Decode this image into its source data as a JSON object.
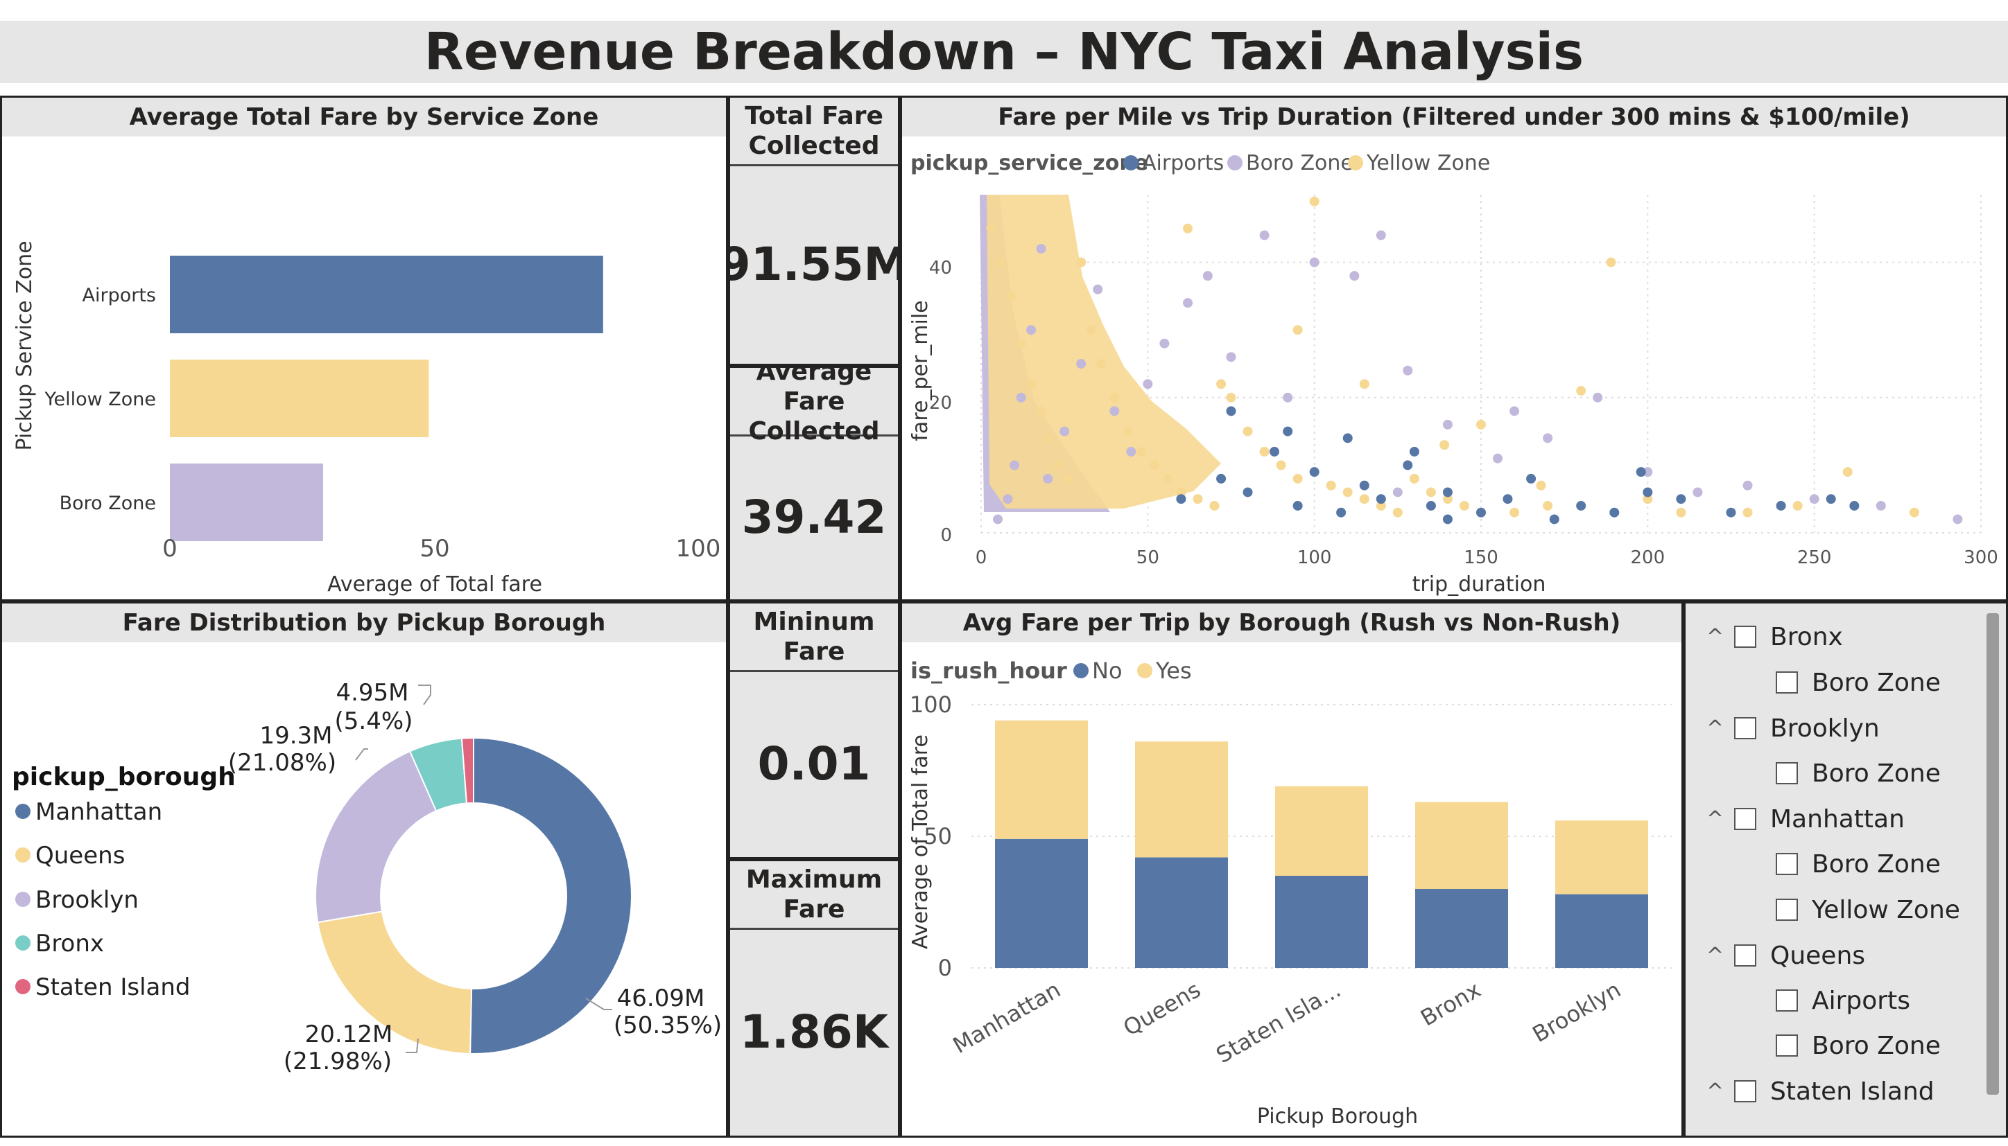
{
  "page": {
    "title": "Revenue Breakdown – NYC Taxi Analysis"
  },
  "colors": {
    "airports": "#5677a5",
    "yellow_zone": "#f6d892",
    "boro_zone": "#c2b8dc",
    "bronx": "#78cdc6",
    "staten_island": "#e0667f",
    "banner": "#e6e6e6"
  },
  "cards": [
    {
      "title": "Total Fare Collected",
      "value": "91.55M"
    },
    {
      "title": "Average Fare Collected",
      "value": "39.42"
    },
    {
      "title": "Mininum Fare",
      "value": "0.01"
    },
    {
      "title": "Maximum Fare",
      "value": "1.86K"
    }
  ],
  "bar_chart": {
    "title": "Average Total Fare by Service Zone",
    "xlabel": "Average of Total fare",
    "ylabel": "Pickup Service Zone",
    "ticks": [
      "0",
      "50",
      "100"
    ],
    "chart_data": {
      "type": "bar",
      "orientation": "horizontal",
      "categories": [
        "Airports",
        "Yellow Zone",
        "Boro Zone"
      ],
      "values": [
        82,
        49,
        29
      ],
      "xlim": [
        0,
        100
      ]
    }
  },
  "scatter_chart": {
    "title": "Fare per Mile vs Trip Duration (Filtered under 300 mins & $100/mile)",
    "legend_title": "pickup_service_zone",
    "legend": [
      "Airports",
      "Boro Zone",
      "Yellow Zone"
    ],
    "xlabel": "trip_duration",
    "ylabel": "fare_per_mile",
    "xticks": [
      "0",
      "50",
      "100",
      "150",
      "200",
      "250",
      "300"
    ],
    "yticks": [
      "0",
      "20",
      "40"
    ],
    "chart_data": {
      "type": "scatter",
      "xlim": [
        0,
        300
      ],
      "ylim": [
        0,
        50
      ],
      "series": [
        {
          "name": "Airports",
          "points": [
            [
              60,
              5
            ],
            [
              72,
              8
            ],
            [
              80,
              6
            ],
            [
              88,
              12
            ],
            [
              95,
              4
            ],
            [
              100,
              9
            ],
            [
              108,
              3
            ],
            [
              115,
              7
            ],
            [
              120,
              5
            ],
            [
              128,
              10
            ],
            [
              135,
              4
            ],
            [
              140,
              6
            ],
            [
              150,
              3
            ],
            [
              158,
              5
            ],
            [
              165,
              8
            ],
            [
              172,
              2
            ],
            [
              180,
              4
            ],
            [
              190,
              3
            ],
            [
              200,
              6
            ],
            [
              210,
              5
            ],
            [
              225,
              3
            ],
            [
              240,
              4
            ],
            [
              255,
              5
            ],
            [
              262,
              4
            ],
            [
              92,
              15
            ],
            [
              110,
              14
            ],
            [
              130,
              12
            ],
            [
              75,
              18
            ],
            [
              140,
              2
            ],
            [
              198,
              9
            ]
          ]
        },
        {
          "name": "Boro Zone",
          "points": [
            [
              5,
              2
            ],
            [
              8,
              5
            ],
            [
              10,
              10
            ],
            [
              12,
              20
            ],
            [
              15,
              30
            ],
            [
              18,
              42
            ],
            [
              20,
              8
            ],
            [
              25,
              15
            ],
            [
              30,
              25
            ],
            [
              35,
              36
            ],
            [
              40,
              18
            ],
            [
              45,
              12
            ],
            [
              50,
              22
            ],
            [
              55,
              28
            ],
            [
              62,
              34
            ],
            [
              68,
              38
            ],
            [
              75,
              26
            ],
            [
              85,
              44
            ],
            [
              92,
              20
            ],
            [
              100,
              40
            ],
            [
              112,
              38
            ],
            [
              120,
              44
            ],
            [
              128,
              24
            ],
            [
              140,
              16
            ],
            [
              160,
              18
            ],
            [
              170,
              14
            ],
            [
              185,
              20
            ],
            [
              200,
              9
            ],
            [
              215,
              6
            ],
            [
              230,
              7
            ],
            [
              250,
              5
            ],
            [
              270,
              4
            ],
            [
              293,
              2
            ],
            [
              125,
              6
            ],
            [
              155,
              11
            ]
          ]
        },
        {
          "name": "Yellow Zone",
          "points": [
            [
              3,
              45
            ],
            [
              6,
              40
            ],
            [
              9,
              35
            ],
            [
              12,
              28
            ],
            [
              15,
              22
            ],
            [
              18,
              18
            ],
            [
              20,
              14
            ],
            [
              23,
              10
            ],
            [
              26,
              8
            ],
            [
              30,
              40
            ],
            [
              33,
              30
            ],
            [
              36,
              25
            ],
            [
              40,
              20
            ],
            [
              44,
              15
            ],
            [
              48,
              12
            ],
            [
              52,
              10
            ],
            [
              56,
              8
            ],
            [
              60,
              6
            ],
            [
              65,
              5
            ],
            [
              70,
              4
            ],
            [
              75,
              20
            ],
            [
              80,
              15
            ],
            [
              85,
              12
            ],
            [
              90,
              10
            ],
            [
              95,
              8
            ],
            [
              100,
              49
            ],
            [
              105,
              7
            ],
            [
              110,
              6
            ],
            [
              115,
              5
            ],
            [
              120,
              4
            ],
            [
              125,
              3
            ],
            [
              130,
              8
            ],
            [
              135,
              6
            ],
            [
              140,
              5
            ],
            [
              145,
              4
            ],
            [
              150,
              3
            ],
            [
              160,
              3
            ],
            [
              170,
              4
            ],
            [
              180,
              21
            ],
            [
              189,
              40
            ],
            [
              200,
              5
            ],
            [
              210,
              3
            ],
            [
              230,
              3
            ],
            [
              245,
              4
            ],
            [
              260,
              9
            ],
            [
              280,
              3
            ],
            [
              62,
              45
            ],
            [
              72,
              22
            ],
            [
              95,
              30
            ],
            [
              115,
              22
            ],
            [
              139,
              13
            ],
            [
              150,
              16
            ],
            [
              168,
              7
            ]
          ]
        }
      ]
    }
  },
  "donut_chart": {
    "title": "Fare Distribution by Pickup Borough",
    "legend_title": "pickup_borough",
    "chart_data": {
      "type": "pie",
      "categories": [
        "Manhattan",
        "Queens",
        "Brooklyn",
        "Bronx",
        "Staten Island"
      ],
      "values": [
        46.09,
        20.12,
        19.3,
        4.95,
        1.09
      ],
      "labels": [
        {
          "value": "46.09M",
          "pct": "(50.35%)"
        },
        {
          "value": "20.12M",
          "pct": "(21.98%)"
        },
        {
          "value": "19.3M",
          "pct": "(21.08%)"
        },
        {
          "value": "4.95M",
          "pct": "(5.4%)"
        }
      ]
    }
  },
  "stacked_chart": {
    "title": "Avg Fare per Trip by Borough (Rush vs Non-Rush)",
    "legend_title": "is_rush_hour",
    "legend": [
      "No",
      "Yes"
    ],
    "xlabel": "Pickup Borough",
    "ylabel": "Average of Total fare",
    "yticks": [
      "0",
      "50",
      "100"
    ],
    "chart_data": {
      "type": "bar",
      "stacked": true,
      "categories": [
        "Manhattan",
        "Queens",
        "Staten Isla...",
        "Bronx",
        "Brooklyn"
      ],
      "ylim": [
        0,
        100
      ],
      "series": [
        {
          "name": "No",
          "values": [
            49,
            42,
            35,
            30,
            28
          ]
        },
        {
          "name": "Yes",
          "values": [
            45,
            44,
            34,
            33,
            28
          ]
        }
      ]
    }
  },
  "slicer": {
    "items": [
      {
        "label": "Bronx",
        "level": 0
      },
      {
        "label": "Boro Zone",
        "level": 1
      },
      {
        "label": "Brooklyn",
        "level": 0
      },
      {
        "label": "Boro Zone",
        "level": 1
      },
      {
        "label": "Manhattan",
        "level": 0
      },
      {
        "label": "Boro Zone",
        "level": 1
      },
      {
        "label": "Yellow Zone",
        "level": 1
      },
      {
        "label": "Queens",
        "level": 0
      },
      {
        "label": "Airports",
        "level": 1
      },
      {
        "label": "Boro Zone",
        "level": 1
      },
      {
        "label": "Staten Island",
        "level": 0
      }
    ],
    "chevron": "^"
  }
}
